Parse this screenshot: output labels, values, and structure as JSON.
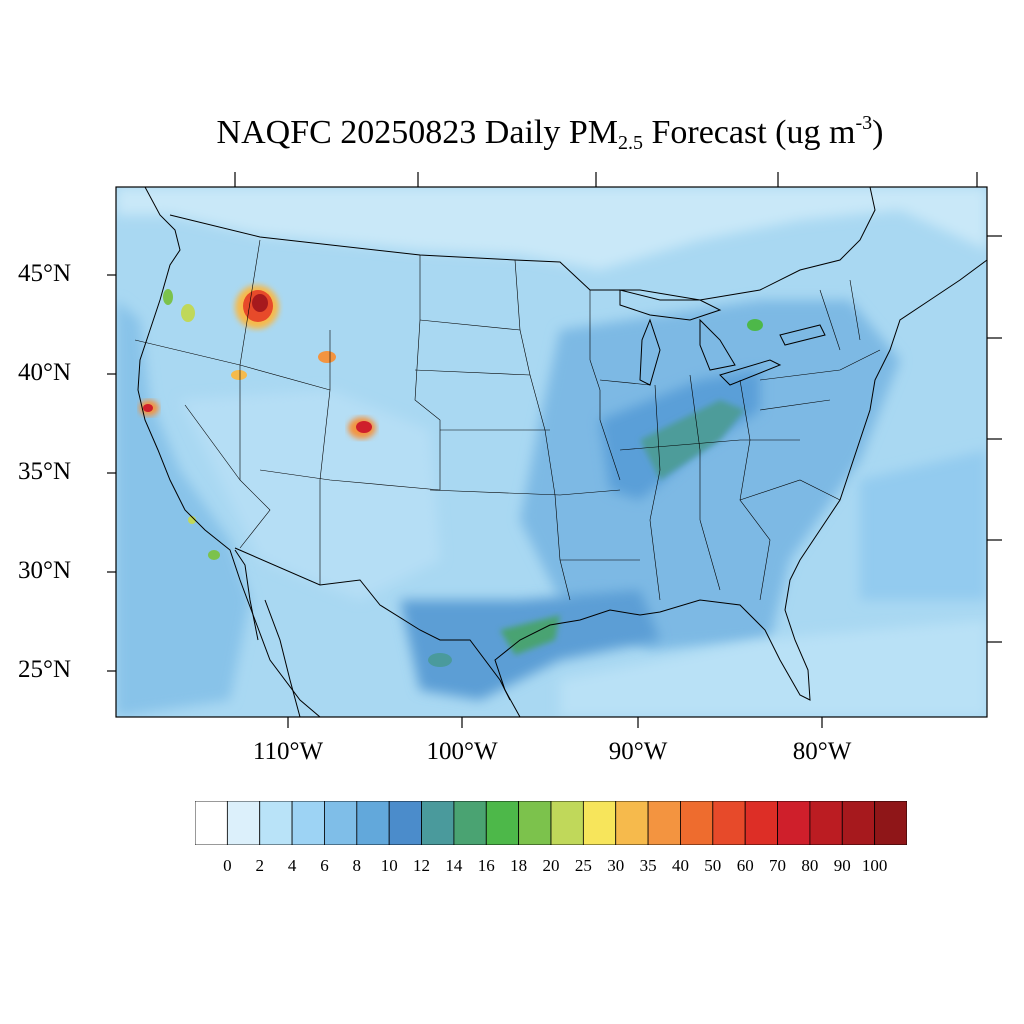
{
  "title": {
    "main": "NAQFC 20250823 Daily PM",
    "subscript": "2.5",
    "after": " Forecast (ug m",
    "superscript": "-3",
    "close": ")"
  },
  "map": {
    "lat_labels": [
      "45°N",
      "40°N",
      "35°N",
      "30°N",
      "25°N"
    ],
    "lon_labels": [
      "110°W",
      "100°W",
      "90°W",
      "80°W"
    ],
    "background_color": "#a9d8f2"
  },
  "colorbar": {
    "colors": [
      "#ffffff",
      "#dcf0fb",
      "#b9e3f8",
      "#9dd3f4",
      "#7fbee8",
      "#62a8db",
      "#4b8ccb",
      "#4a9a9c",
      "#4aa372",
      "#4db849",
      "#7cc24c",
      "#c0d85a",
      "#f7e55b",
      "#f6ba4c",
      "#f39440",
      "#ee6c2e",
      "#e74a2a",
      "#dd2e26",
      "#cf1f2b",
      "#bb1c22",
      "#a6191d",
      "#8f1618"
    ],
    "labels": [
      "0",
      "2",
      "4",
      "6",
      "8",
      "10",
      "12",
      "14",
      "16",
      "18",
      "20",
      "25",
      "30",
      "35",
      "40",
      "50",
      "60",
      "70",
      "80",
      "90",
      "100"
    ]
  }
}
